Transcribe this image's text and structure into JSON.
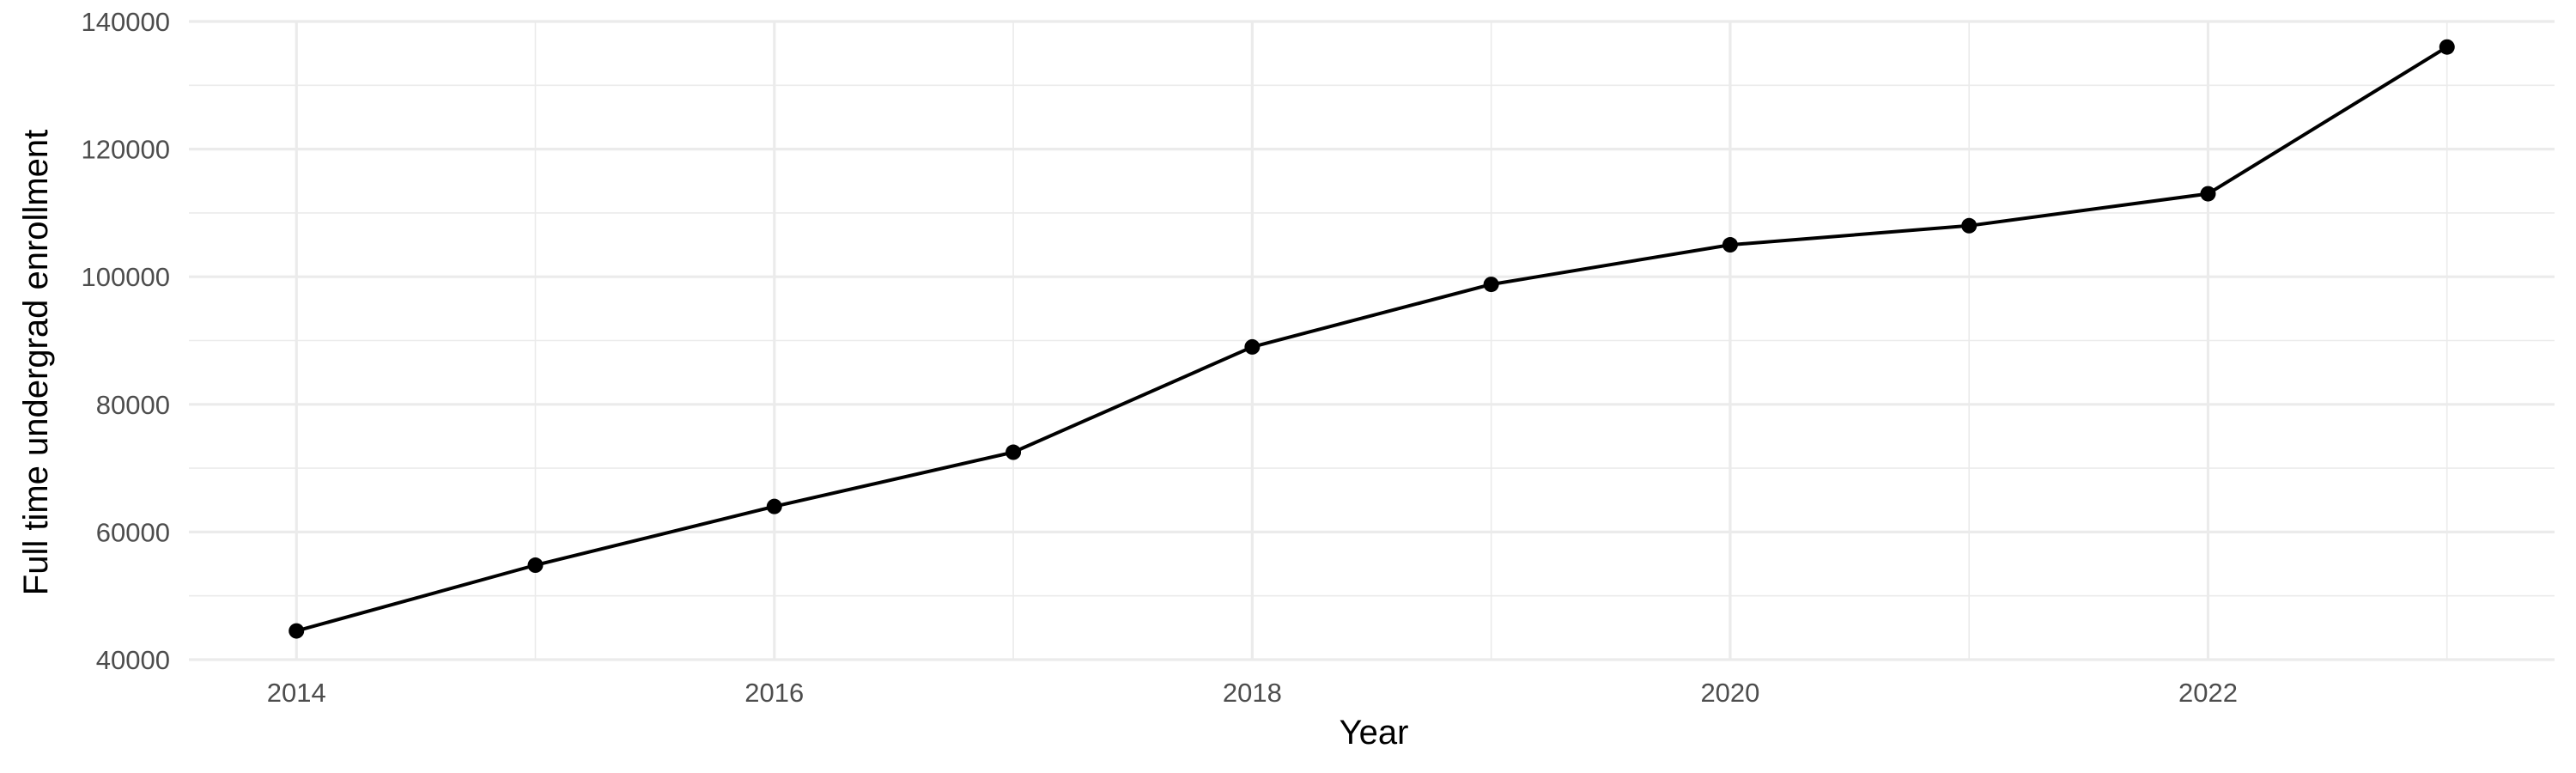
{
  "chart_data": {
    "type": "line",
    "title": "",
    "xlabel": "Year",
    "ylabel": "Full time undergrad enrollment",
    "x": [
      2014,
      2015,
      2016,
      2017,
      2018,
      2019,
      2020,
      2021,
      2022,
      2023
    ],
    "series": [
      {
        "values": [
          44500,
          54800,
          64000,
          72500,
          89000,
          98800,
          105000,
          108000,
          113000,
          136000
        ]
      }
    ],
    "xlim": [
      2013.55,
      2023.45
    ],
    "ylim": [
      40000,
      140000
    ],
    "x_ticks": [
      2014,
      2016,
      2018,
      2020,
      2022
    ],
    "x_tick_labels": [
      "2014",
      "2016",
      "2018",
      "2020",
      "2022"
    ],
    "y_ticks": [
      40000,
      60000,
      80000,
      100000,
      120000,
      140000
    ],
    "y_tick_labels": [
      "40000",
      "60000",
      "80000",
      "100000",
      "120000",
      "140000"
    ],
    "x_minor_ticks": [
      2015,
      2017,
      2019,
      2021,
      2023
    ],
    "y_minor_ticks": [
      50000,
      70000,
      90000,
      110000,
      130000
    ],
    "grid": true,
    "legend": "none",
    "colors": {
      "line": "#000000",
      "point": "#000000",
      "grid": "#ebebeb",
      "tick_text": "#4d4d4d",
      "background": "#ffffff"
    }
  }
}
